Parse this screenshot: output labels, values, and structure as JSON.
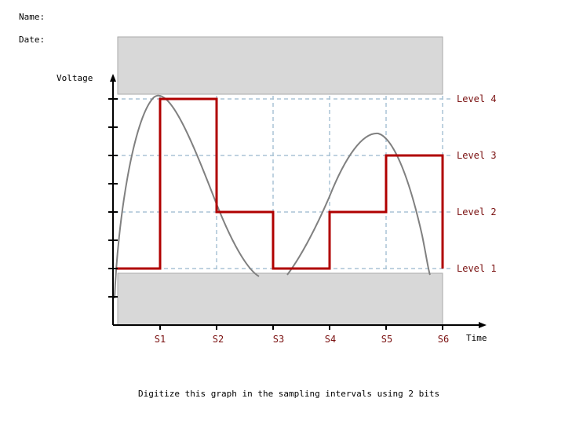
{
  "header": {
    "name_label": "Name:",
    "date_label": "Date:"
  },
  "axes": {
    "y_label": "Voltage",
    "x_label": "Time"
  },
  "levels": [
    "Level 1",
    "Level 2",
    "Level 3",
    "Level 4"
  ],
  "samples": [
    "S1",
    "S2",
    "S3",
    "S4",
    "S5",
    "S6"
  ],
  "digitized_levels": [
    1,
    4,
    2,
    1,
    2,
    3,
    1
  ],
  "instruction": "Digitize this graph in the sampling intervals using 2 bits",
  "colors": {
    "digital_signal": "#b00000",
    "analog_signal": "#808080",
    "grid": "#aac4d6",
    "shaded_band": "#d8d8d8",
    "label_text": "#7a1010"
  }
}
